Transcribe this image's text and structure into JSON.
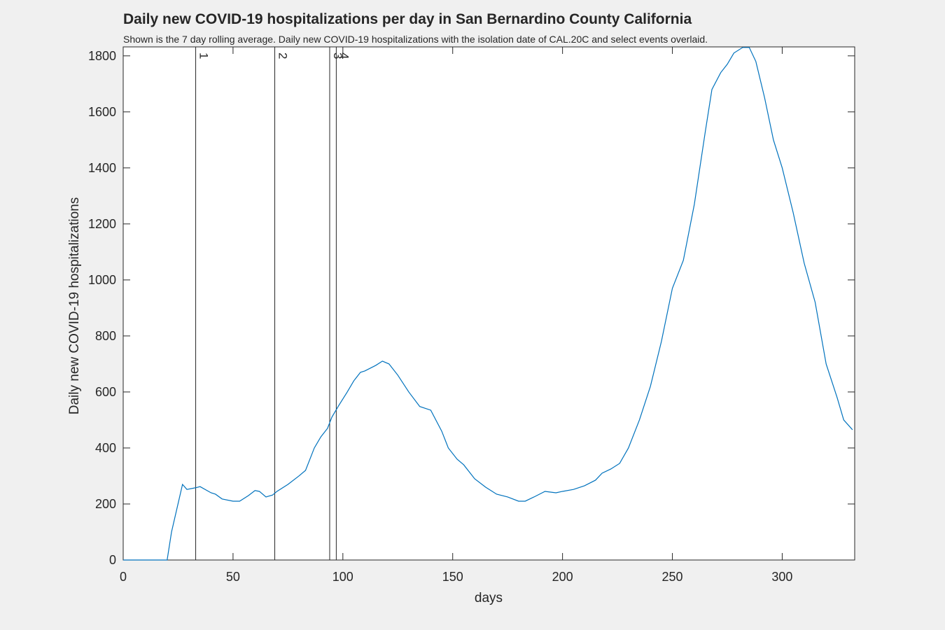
{
  "chart_data": {
    "type": "line",
    "title": "Daily new COVID-19 hospitalizations per day in San Bernardino County California",
    "subtitle": "Shown is the 7 day rolling average. Daily new COVID-19 hospitalizations with the isolation date of CAL.20C and select events overlaid.",
    "xlabel": "days",
    "ylabel": "Daily new COVID-19 hospitalizations",
    "xlim": [
      0,
      333
    ],
    "ylim": [
      0,
      1832
    ],
    "xticks": [
      0,
      50,
      100,
      150,
      200,
      250,
      300
    ],
    "yticks": [
      0,
      200,
      400,
      600,
      800,
      1000,
      1200,
      1400,
      1600,
      1800
    ],
    "events": {
      "x": [
        33,
        69,
        94,
        97
      ],
      "labels": [
        "1",
        "2",
        "3",
        "4"
      ],
      "color": "#262626"
    },
    "series": [
      {
        "color": "#0072bd",
        "x": [
          0,
          5,
          10,
          15,
          20,
          22,
          27,
          29,
          33,
          35,
          40,
          42,
          45,
          50,
          53,
          57,
          60,
          62,
          65,
          68,
          70,
          75,
          80,
          83,
          87,
          90,
          93,
          95,
          98,
          102,
          105,
          108,
          110,
          115,
          118,
          121,
          125,
          130,
          135,
          140,
          145,
          148,
          152,
          155,
          160,
          165,
          170,
          175,
          180,
          183,
          187,
          192,
          197,
          200,
          205,
          210,
          215,
          218,
          222,
          226,
          230,
          235,
          240,
          245,
          250,
          255,
          260,
          265,
          268,
          272,
          275,
          278,
          282,
          285,
          288,
          292,
          296,
          300,
          305,
          310,
          315,
          320,
          325,
          328,
          332
        ],
        "values": [
          0,
          0,
          0,
          0,
          0,
          100,
          270,
          252,
          258,
          262,
          240,
          235,
          218,
          210,
          210,
          230,
          248,
          245,
          225,
          232,
          245,
          270,
          300,
          320,
          400,
          440,
          470,
          510,
          550,
          600,
          640,
          670,
          675,
          695,
          710,
          700,
          660,
          600,
          548,
          535,
          460,
          400,
          360,
          340,
          290,
          260,
          235,
          225,
          210,
          210,
          225,
          245,
          240,
          245,
          252,
          265,
          285,
          310,
          325,
          345,
          400,
          500,
          620,
          780,
          970,
          1070,
          1270,
          1530,
          1680,
          1740,
          1770,
          1810,
          1830,
          1830,
          1780,
          1650,
          1500,
          1400,
          1240,
          1060,
          920,
          700,
          580,
          500,
          465
        ]
      }
    ]
  }
}
